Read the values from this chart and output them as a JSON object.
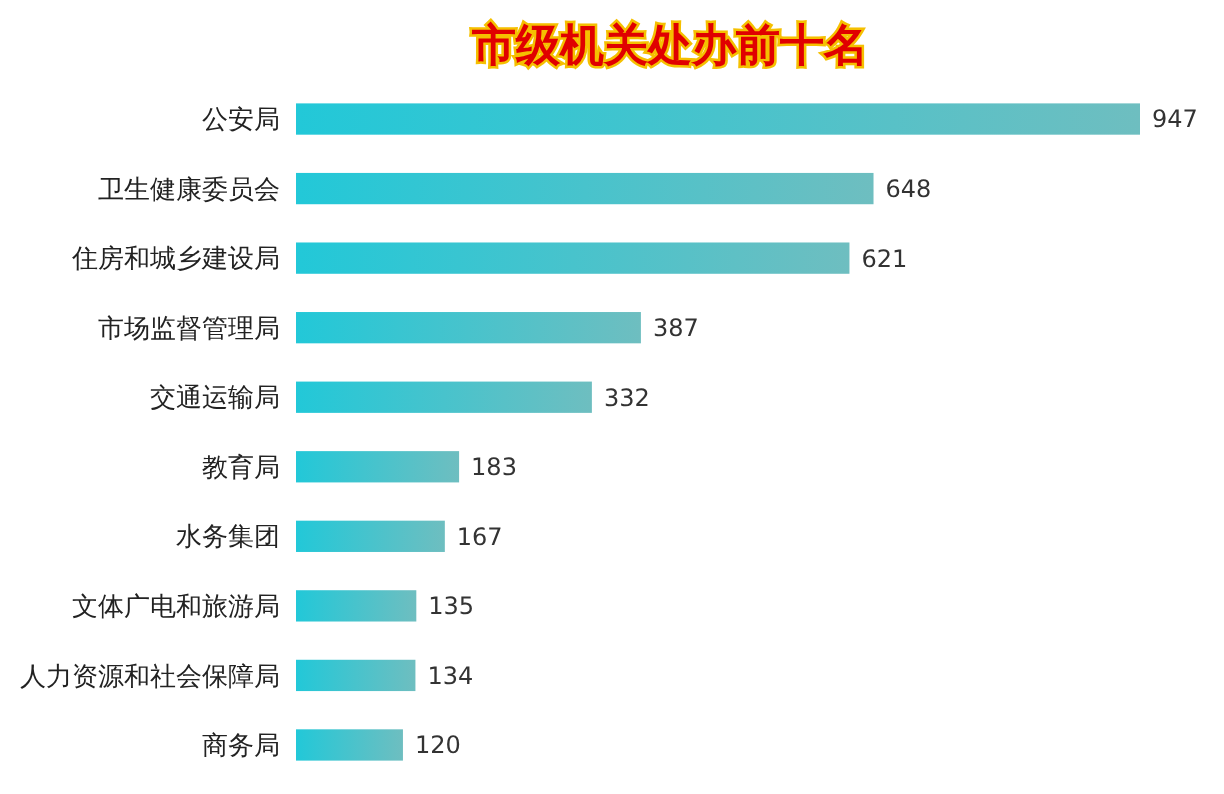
{
  "chart_data": {
    "type": "bar",
    "orientation": "horizontal",
    "title": "市级机关处办前十名",
    "categories": [
      "公安局",
      "卫生健康委员会",
      "住房和城乡建设局",
      "市场监督管理局",
      "交通运输局",
      "教育局",
      "水务集团",
      "文体广电和旅游局",
      "人力资源和社会保障局",
      "商务局"
    ],
    "values": [
      947,
      648,
      621,
      387,
      332,
      183,
      167,
      135,
      134,
      120
    ],
    "color": "#22c8d8",
    "xlim": [
      0,
      947
    ],
    "data_labels": true,
    "grid": false,
    "tick_labels": "y"
  }
}
